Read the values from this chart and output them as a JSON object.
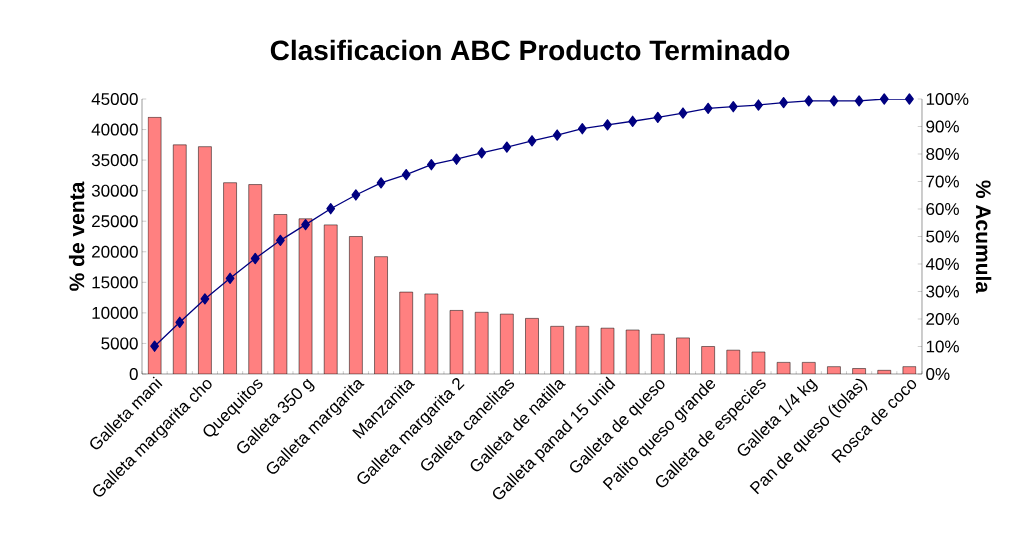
{
  "chart_data": {
    "type": "bar",
    "title": "Clasificacion ABC Producto Terminado",
    "ylabel": "% de venta",
    "y2label": "% Acumula",
    "categories": [
      "Galleta mani",
      null,
      "Galleta margarita cho",
      null,
      "Quequitos",
      null,
      "Galleta 350 g",
      null,
      "Galleta margarita",
      null,
      "Manzanita",
      null,
      "Galleta margarita 2",
      null,
      "Galleta canelitas",
      null,
      "Galleta de natilla",
      null,
      "Galleta panad  15 unid",
      null,
      "Galleta de queso",
      null,
      "Palito queso grande",
      null,
      "Galleta de especies",
      null,
      "Galleta 1/4 kg",
      null,
      "Pan de queso (tolas)",
      null,
      "Rosca de coco"
    ],
    "series": [
      {
        "color": "#ff8080",
        "values": [
          42000,
          37500,
          37200,
          31300,
          31000,
          26100,
          25400,
          24400,
          22500,
          19200,
          13400,
          13100,
          10400,
          10100,
          9800,
          9100,
          7800,
          7800,
          7500,
          7200,
          6500,
          5900,
          4500,
          3900,
          3600,
          1900,
          1900,
          1200,
          900,
          600,
          1200
        ]
      },
      {
        "type": "line",
        "axis": "y2",
        "color": "#000080",
        "marker": "diamond",
        "values": [
          10.1,
          18.8,
          27.3,
          34.8,
          42.0,
          48.6,
          54.3,
          60.1,
          65.1,
          69.5,
          72.5,
          76.1,
          78.1,
          80.4,
          82.5,
          84.8,
          86.9,
          89.2,
          90.6,
          91.9,
          93.3,
          94.9,
          96.6,
          97.2,
          97.8,
          98.7,
          99.3,
          99.3,
          99.3,
          100,
          100
        ]
      }
    ],
    "ylim": [
      0,
      45000
    ],
    "yticks": [
      0,
      5000,
      10000,
      15000,
      20000,
      25000,
      30000,
      35000,
      40000,
      45000
    ],
    "y2lim": [
      0,
      100
    ],
    "y2ticks": [
      {
        "value": 0,
        "label": "0%"
      },
      {
        "value": 10,
        "label": "10%"
      },
      {
        "value": 20,
        "label": "20%"
      },
      {
        "value": 30,
        "label": "30%"
      },
      {
        "value": 40,
        "label": "40%"
      },
      {
        "value": 50,
        "label": "50%"
      },
      {
        "value": 60,
        "label": "60%"
      },
      {
        "value": 70,
        "label": "70%"
      },
      {
        "value": 80,
        "label": "80%"
      },
      {
        "value": 90,
        "label": "90%"
      },
      {
        "value": 100,
        "label": "100%"
      }
    ]
  }
}
